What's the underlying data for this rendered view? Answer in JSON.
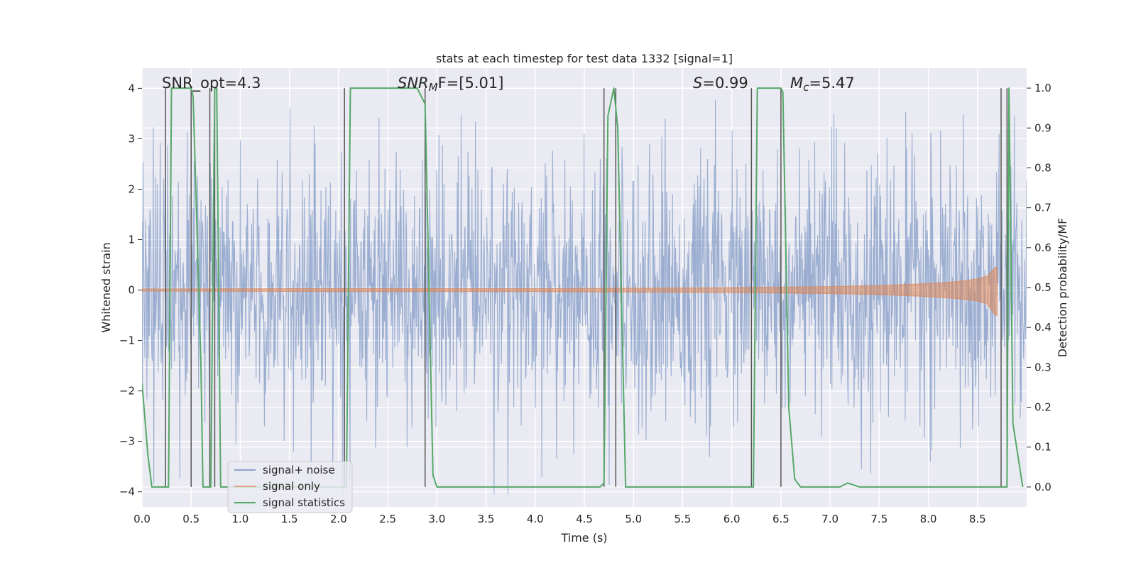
{
  "chart_data": {
    "type": "line",
    "title": "stats at each timestep for test data 1332 [signal=1]",
    "xlabel": "Time (s)",
    "ylabel": "Whitened strain",
    "y2label": "Detection probability/MF",
    "xlim": [
      0.0,
      9.0
    ],
    "ylim": [
      -4.3,
      4.4
    ],
    "y2lim": [
      -0.05,
      1.05
    ],
    "xticks": [
      "0.0",
      "0.5",
      "1.0",
      "1.5",
      "2.0",
      "2.5",
      "3.0",
      "3.5",
      "4.0",
      "4.5",
      "5.0",
      "5.5",
      "6.0",
      "6.5",
      "7.0",
      "7.5",
      "8.0",
      "8.5"
    ],
    "yticks": [
      "−4",
      "−3",
      "−2",
      "−1",
      "0",
      "1",
      "2",
      "3",
      "4"
    ],
    "y2ticks": [
      "0.0",
      "0.1",
      "0.2",
      "0.3",
      "0.4",
      "0.5",
      "0.6",
      "0.7",
      "0.8",
      "0.9",
      "1.0"
    ],
    "annotations": {
      "snr_opt": "SNR_opt=4.3",
      "snr_mf_main": "SNR",
      "snr_mf_sub": "M",
      "snr_mf_tail": "F=[5.01]",
      "s_main": "S",
      "s_tail": "=0.99",
      "mc_main": "M",
      "mc_sub": "c",
      "mc_tail": "=5.47"
    },
    "legend": {
      "position": "lower-left",
      "entries": [
        "signal+ noise",
        "signal only",
        "signal statistics"
      ]
    },
    "colors": {
      "noise": "#4c72b0",
      "signal": "#dd8452",
      "stats": "#55a868",
      "vline": "#555555",
      "axes_bg": "#eaeaf2",
      "grid": "#ffffff"
    },
    "series": [
      {
        "name": "signal statistics",
        "axis": "right",
        "x": [
          0.0,
          0.06,
          0.1,
          0.18,
          0.24,
          0.27,
          0.3,
          0.4,
          0.5,
          0.52,
          0.6,
          0.62,
          0.68,
          0.7,
          0.74,
          0.76,
          0.8,
          0.82,
          2.04,
          2.08,
          2.12,
          2.8,
          2.88,
          2.96,
          3.0,
          3.5,
          4.0,
          4.1,
          4.6,
          4.66,
          4.7,
          4.74,
          4.8,
          4.84,
          4.92,
          5.0,
          5.2,
          5.4,
          6.18,
          6.22,
          6.26,
          6.5,
          6.52,
          6.58,
          6.64,
          6.7,
          6.8,
          7.1,
          7.18,
          7.3,
          8.7,
          8.76,
          8.8,
          8.82,
          8.86,
          8.96
        ],
        "values": [
          0.26,
          0.08,
          0.0,
          0.0,
          0.0,
          0.0,
          1.0,
          1.0,
          1.0,
          0.98,
          0.3,
          0.0,
          0.0,
          0.0,
          1.0,
          1.0,
          0.0,
          0.0,
          0.0,
          0.0,
          1.0,
          1.0,
          0.96,
          0.03,
          0.0,
          0.0,
          0.0,
          0.0,
          0.0,
          0.0,
          0.01,
          0.93,
          1.0,
          0.9,
          0.0,
          0.0,
          0.0,
          0.0,
          0.0,
          0.0,
          1.0,
          1.0,
          0.99,
          0.2,
          0.02,
          0.0,
          0.0,
          0.0,
          0.01,
          0.0,
          0.0,
          0.0,
          0.0,
          1.0,
          0.16,
          0.0
        ]
      },
      {
        "name": "signal only",
        "axis": "left",
        "envelope": {
          "x": [
            0.0,
            2.0,
            4.0,
            5.0,
            6.0,
            7.0,
            7.5,
            8.0,
            8.3,
            8.5,
            8.6,
            8.68,
            8.7
          ],
          "upper": [
            0.02,
            0.03,
            0.03,
            0.04,
            0.05,
            0.07,
            0.09,
            0.13,
            0.17,
            0.22,
            0.28,
            0.45,
            0.45
          ],
          "lower": [
            -0.02,
            -0.03,
            -0.03,
            -0.04,
            -0.05,
            -0.07,
            -0.09,
            -0.13,
            -0.17,
            -0.22,
            -0.28,
            -0.5,
            -0.5
          ]
        }
      },
      {
        "name": "signal+ noise",
        "axis": "left",
        "samples": 1800,
        "amplitude_hint": "whitened gaussian noise, values roughly within [-4, 4]"
      }
    ],
    "detection_lines_x": [
      0.24,
      0.5,
      0.69,
      0.74,
      2.06,
      2.88,
      4.7,
      4.82,
      6.2,
      6.5,
      8.74,
      8.8
    ]
  }
}
